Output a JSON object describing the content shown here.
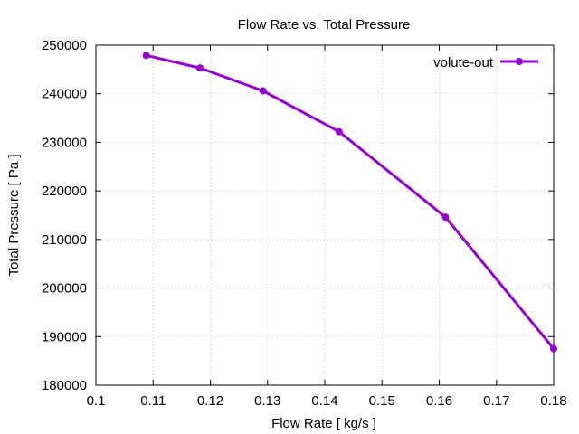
{
  "chart_data": {
    "type": "line",
    "title": "Flow Rate vs. Total Pressure",
    "xlabel": "Flow Rate [ kg/s ]",
    "ylabel": "Total Pressure [ Pa ]",
    "xlim": [
      0.1,
      0.18
    ],
    "ylim": [
      180000,
      250000
    ],
    "xticks": [
      0.1,
      0.11,
      0.12,
      0.13,
      0.14,
      0.15,
      0.16,
      0.17,
      0.18
    ],
    "xtick_labels": [
      "0.1",
      "0.11",
      "0.12",
      "0.13",
      "0.14",
      "0.15",
      "0.16",
      "0.17",
      "0.18"
    ],
    "yticks": [
      180000,
      190000,
      200000,
      210000,
      220000,
      230000,
      240000,
      250000
    ],
    "ytick_labels": [
      "180000",
      "190000",
      "200000",
      "210000",
      "220000",
      "230000",
      "240000",
      "250000"
    ],
    "grid": true,
    "legend_position": "top-right",
    "series": [
      {
        "name": "volute-out",
        "color": "#9400d3",
        "marker": "circle",
        "x": [
          0.1088,
          0.1182,
          0.1292,
          0.1425,
          0.1611,
          0.18
        ],
        "y": [
          247900,
          245300,
          240600,
          232200,
          214600,
          187500
        ]
      }
    ]
  }
}
